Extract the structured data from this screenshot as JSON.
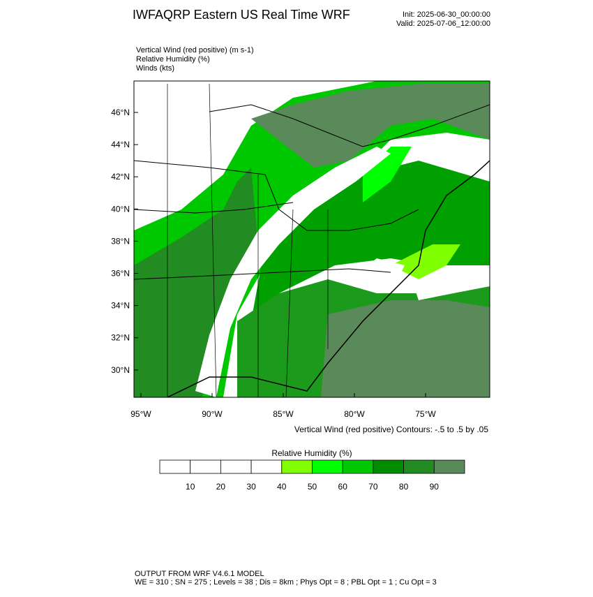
{
  "header": {
    "title": "IWFAQRP Eastern US Real Time WRF",
    "init": "Init: 2025-06-30_00:00:00",
    "valid": "Valid: 2025-07-06_12:00:00"
  },
  "fields": [
    "Vertical Wind (red positive)   (m s-1)",
    "Relative Humidity   (%)",
    "Winds   (kts)"
  ],
  "map": {
    "lat_labels": [
      "46°N",
      "44°N",
      "42°N",
      "40°N",
      "38°N",
      "36°N",
      "34°N",
      "32°N",
      "30°N"
    ],
    "lon_labels": [
      "95°W",
      "90°W",
      "85°W",
      "80°W",
      "75°W"
    ],
    "contour_note": "Vertical Wind (red positive) Contours: -.5 to .5 by .05"
  },
  "colorbar": {
    "title": "Relative Humidity   (%)",
    "labels": [
      "10",
      "20",
      "30",
      "40",
      "50",
      "60",
      "70",
      "80",
      "90"
    ],
    "colors": [
      "#ffffff",
      "#ffffff",
      "#ffffff",
      "#ffffff",
      "#80ff00",
      "#00ff00",
      "#00c800",
      "#008c00",
      "#228b22",
      "#5a8a5a"
    ]
  },
  "footer": {
    "line1": "OUTPUT FROM WRF V4.6.1 MODEL",
    "line2": "WE = 310 ; SN = 275 ; Levels = 38 ; Dis = 8km ; Phys Opt = 8 ; PBL Opt = 1 ; Cu Opt = 3"
  }
}
